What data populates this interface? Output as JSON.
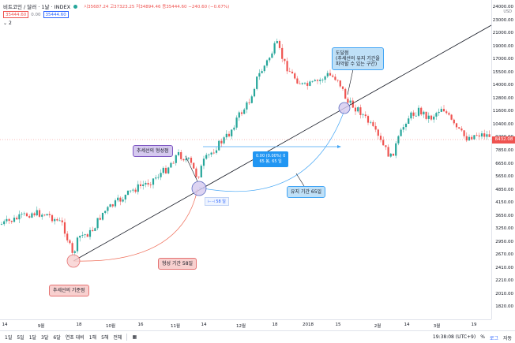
{
  "header": {
    "symbol": "비트코인 / 달러 · 1날 · INDEX",
    "ohlc": "시35687.24  고37323.25  저34894.46  종35444.60  −240.60 (−0.67%)",
    "bid": "35444.60",
    "spread": "0.00",
    "ask": "35444.60",
    "indicator_count": "2"
  },
  "price_axis": {
    "currency": "USD",
    "ticks": [
      "24000.00",
      "23000.00",
      "21000.00",
      "19000.00",
      "17000.00",
      "15500.00",
      "14000.00",
      "12800.00",
      "11600.00",
      "10400.00",
      "9200.00",
      "7850.00",
      "6650.00",
      "5650.00",
      "4850.00",
      "4150.00",
      "3650.00",
      "3250.00",
      "2950.00",
      "2670.00",
      "2410.00",
      "2210.00",
      "2010.00",
      "1820.00"
    ],
    "last_price": "8432.08"
  },
  "time_axis": {
    "ticks": [
      "14",
      "9월",
      "18",
      "10월",
      "16",
      "11월",
      "14",
      "12월",
      "18",
      "2018",
      "15",
      "2월",
      "14",
      "3월",
      "19"
    ]
  },
  "annotations": {
    "trend_base": "추세선의 기준점",
    "trend_form": "추세선의 형성점",
    "form_period": "형성 기간 58일",
    "hold_period": "유지 기간 65일",
    "arrival_title": "도달점",
    "arrival_line1": "(추세선의 유지 기간을",
    "arrival_line2": "파악할 수 있는 구간)",
    "info_line1": "0.00 (0.00%) 0",
    "info_line2": "65 봉, 65 일",
    "tag_58": "58 일"
  },
  "bottom_bar": {
    "ranges": [
      "1일",
      "5일",
      "1달",
      "3달",
      "6달",
      "연초 대비",
      "1해",
      "5해",
      "전체"
    ],
    "clock": "19:38:08 (UTC+9)",
    "percent": "%",
    "log": "로그",
    "auto": "자동"
  },
  "colors": {
    "up": "#26a69a",
    "down": "#ef5350",
    "trend": "#131722",
    "blue_arc": "#42a5f5",
    "red_arc": "#ef6c57"
  }
}
